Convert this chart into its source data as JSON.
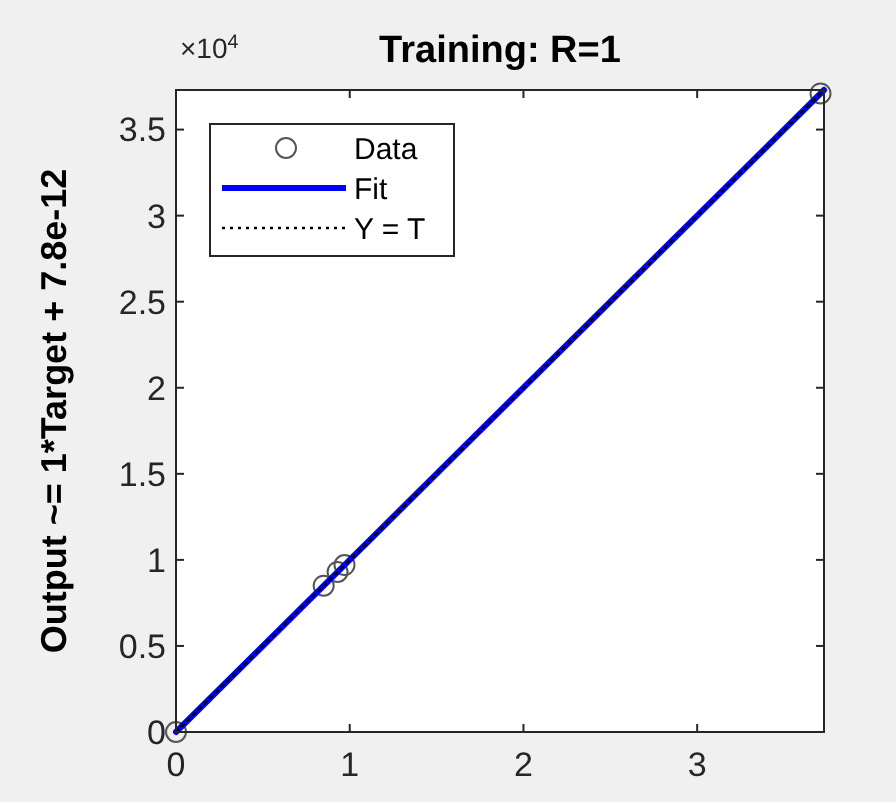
{
  "chart_data": {
    "type": "scatter",
    "title": "Training: R=1",
    "ylabel": "Output ~= 1*Target + 7.8e-12",
    "annotations": [
      "×10$^{4}$"
    ],
    "xlim": [
      0,
      3.73
    ],
    "ylim": [
      0,
      3.73
    ],
    "xticks": [
      0,
      1,
      2,
      3
    ],
    "yticks": [
      0,
      0.5,
      1,
      1.5,
      2,
      2.5,
      3,
      3.5
    ],
    "grid": false,
    "legend": "top left",
    "series": [
      {
        "name": "Data",
        "color": "#555555",
        "marker": "circle",
        "x": [
          0,
          0.85,
          0.93,
          0.97,
          3.71
        ],
        "values": [
          0,
          0.85,
          0.93,
          0.97,
          3.71
        ]
      },
      {
        "name": "Fit",
        "type": "line",
        "color": "#0000ff",
        "line_style": "solid",
        "x": [
          0,
          3.73
        ],
        "values": [
          0,
          3.73
        ]
      },
      {
        "name": "Y = T",
        "type": "line",
        "color": "#000000",
        "line_style": "dotted",
        "x": [
          0,
          3.73
        ],
        "values": [
          0,
          3.73
        ]
      }
    ]
  }
}
